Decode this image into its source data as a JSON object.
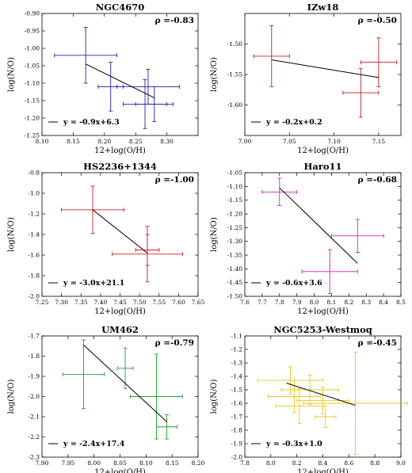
{
  "chart_data": [
    {
      "type": "scatter",
      "title": "NGC4670",
      "rho": "ρ =-0.83",
      "xlabel": "12+log(O/H)",
      "ylabel": "log(N/O)",
      "xlim": [
        8.1,
        8.35
      ],
      "ylim": [
        -1.25,
        -0.9
      ],
      "xticks": [
        8.1,
        8.15,
        8.2,
        8.25,
        8.3
      ],
      "xtick_labels": [
        "8.10",
        "8.15",
        "8.20",
        "8.25",
        "8.30"
      ],
      "yticks": [
        -1.25,
        -1.2,
        -1.15,
        -1.1,
        -1.05,
        -1.0,
        -0.95,
        -0.9
      ],
      "ytick_labels": [
        "-1.25",
        "-1.20",
        "-1.15",
        "-1.10",
        "-1.05",
        "-1.00",
        "-0.95",
        "-0.90"
      ],
      "color": "#2020b0",
      "points": [
        {
          "x": 8.17,
          "y": -1.02,
          "xerr": 0.05,
          "yerr": 0.08
        },
        {
          "x": 8.21,
          "y": -1.11,
          "xerr": 0.02,
          "yerr": 0.07
        },
        {
          "x": 8.27,
          "y": -1.11,
          "xerr": 0.05,
          "yerr": 0.05
        },
        {
          "x": 8.265,
          "y": -1.16,
          "xerr": 0.035,
          "yerr": 0.07
        },
        {
          "x": 8.28,
          "y": -1.16,
          "xerr": 0.03,
          "yerr": 0.05
        }
      ],
      "fit_line": {
        "x": [
          8.17,
          8.28
        ],
        "y": [
          -1.045,
          -1.142
        ]
      },
      "legend": "y = -0.9x+6.3"
    },
    {
      "type": "scatter",
      "title": "IZw18",
      "rho": "ρ =-0.50",
      "xlabel": "12+log(O/H)",
      "ylabel": "log(N/O)",
      "xlim": [
        7.0,
        7.175
      ],
      "ylim": [
        -1.65,
        -1.45
      ],
      "xticks": [
        7.0,
        7.05,
        7.1,
        7.15
      ],
      "xtick_labels": [
        "7.00",
        "7.05",
        "7.10",
        "7.15"
      ],
      "yticks": [
        -1.6,
        -1.55,
        -1.5
      ],
      "ytick_labels": [
        "-1.60",
        "-1.55",
        "-1.50"
      ],
      "color": "#c02020",
      "points": [
        {
          "x": 7.03,
          "y": -1.52,
          "xerr": 0.02,
          "yerr": 0.05
        },
        {
          "x": 7.13,
          "y": -1.58,
          "xerr": 0.02,
          "yerr": 0.04
        },
        {
          "x": 7.15,
          "y": -1.53,
          "xerr": 0.02,
          "yerr": 0.04
        }
      ],
      "fit_line": {
        "x": [
          7.03,
          7.15
        ],
        "y": [
          -1.526,
          -1.555
        ]
      },
      "legend": "y = -0.2x+0.2"
    },
    {
      "type": "scatter",
      "title": "HS2236+1344",
      "rho": "ρ =-1.00",
      "xlabel": "12+log(O/H)",
      "ylabel": "log(N/O)",
      "xlim": [
        7.25,
        7.65
      ],
      "ylim": [
        -2.0,
        -0.8
      ],
      "xticks": [
        7.25,
        7.3,
        7.35,
        7.4,
        7.45,
        7.5,
        7.55,
        7.6,
        7.65
      ],
      "xtick_labels": [
        "7.25",
        "7.30",
        "7.35",
        "7.40",
        "7.45",
        "7.50",
        "7.55",
        "7.60",
        "7.65"
      ],
      "yticks": [
        -2.0,
        -1.8,
        -1.6,
        -1.4,
        -1.2,
        -1.0,
        -0.8
      ],
      "ytick_labels": [
        "-2.0",
        "-1.8",
        "-1.6",
        "-1.4",
        "-1.2",
        "-1.0",
        "-0.8"
      ],
      "color": "#d02020",
      "points": [
        {
          "x": 7.38,
          "y": -1.16,
          "xerr": 0.08,
          "yerr": 0.23
        },
        {
          "x": 7.52,
          "y": -1.55,
          "xerr": 0.03,
          "yerr": 0.15
        },
        {
          "x": 7.52,
          "y": -1.59,
          "xerr": 0.09,
          "yerr": 0.27
        }
      ],
      "fit_line": {
        "x": [
          7.38,
          7.52
        ],
        "y": [
          -1.16,
          -1.58
        ]
      },
      "legend": "y = -3.0x+21.1"
    },
    {
      "type": "scatter",
      "title": "Haro11",
      "rho": "ρ =-0.68",
      "xlabel": "12+log(O/H)",
      "ylabel": "log(N/O)",
      "xlim": [
        7.6,
        8.5
      ],
      "ylim": [
        -1.5,
        -1.05
      ],
      "xticks": [
        7.6,
        7.7,
        7.8,
        7.9,
        8.0,
        8.1,
        8.2,
        8.3,
        8.4,
        8.5
      ],
      "xtick_labels": [
        "7.6",
        "7.7",
        "7.8",
        "7.9",
        "8.0",
        "8.1",
        "8.2",
        "8.3",
        "8.4",
        "8.5"
      ],
      "yticks": [
        -1.5,
        -1.45,
        -1.4,
        -1.35,
        -1.3,
        -1.25,
        -1.2,
        -1.15,
        -1.1,
        -1.05
      ],
      "ytick_labels": [
        "-1.50",
        "-1.45",
        "-1.40",
        "-1.35",
        "-1.30",
        "-1.25",
        "-1.20",
        "-1.15",
        "-1.10",
        "-1.05"
      ],
      "color": "#d020c0",
      "points": [
        {
          "x": 7.8,
          "y": -1.12,
          "xerr": 0.1,
          "yerr": 0.05
        },
        {
          "x": 8.25,
          "y": -1.28,
          "xerr": 0.15,
          "yerr": 0.06
        },
        {
          "x": 8.09,
          "y": -1.41,
          "xerr": 0.16,
          "yerr": 0.08
        }
      ],
      "fit_line": {
        "x": [
          7.8,
          8.25
        ],
        "y": [
          -1.105,
          -1.38
        ]
      },
      "legend": "y = -0.6x+3.6"
    },
    {
      "type": "scatter",
      "title": "UM462",
      "rho": "ρ =-0.79",
      "xlabel": "12+log(O/H)",
      "ylabel": "log(N/O)",
      "xlim": [
        7.9,
        8.2
      ],
      "ylim": [
        -2.3,
        -1.7
      ],
      "xticks": [
        7.9,
        7.95,
        8.0,
        8.05,
        8.1,
        8.15,
        8.2
      ],
      "xtick_labels": [
        "7.90",
        "7.95",
        "8.00",
        "8.05",
        "8.10",
        "8.15",
        "8.20"
      ],
      "yticks": [
        -2.3,
        -2.2,
        -2.1,
        -2.0,
        -1.9,
        -1.8,
        -1.7
      ],
      "ytick_labels": [
        "-2.3",
        "-2.2",
        "-2.1",
        "-2.0",
        "-1.9",
        "-1.8",
        "-1.7"
      ],
      "color": "#20a030",
      "points": [
        {
          "x": 7.98,
          "y": -1.89,
          "xerr": 0.04,
          "yerr": 0.17
        },
        {
          "x": 8.06,
          "y": -1.86,
          "xerr": 0.015,
          "yerr": 0.1
        },
        {
          "x": 8.12,
          "y": -2.0,
          "xerr": 0.05,
          "yerr": 0.21
        },
        {
          "x": 8.14,
          "y": -2.15,
          "xerr": 0.02,
          "yerr": 0.06
        }
      ],
      "fit_line": {
        "x": [
          7.98,
          8.14
        ],
        "y": [
          -1.745,
          -2.125
        ]
      },
      "legend": "y = -2.4x+17.4"
    },
    {
      "type": "scatter",
      "title": "NGC5253-Westmoq",
      "rho": "ρ =-0.45",
      "xlabel": "12+log(O/H)",
      "ylabel": "log(N/O)",
      "xlim": [
        7.8,
        9.0
      ],
      "ylim": [
        -2.0,
        -1.1
      ],
      "xticks": [
        7.8,
        8.0,
        8.2,
        8.4,
        8.6,
        8.8,
        9.0
      ],
      "xtick_labels": [
        "7.8",
        "8.0",
        "8.2",
        "8.4",
        "8.6",
        "8.8",
        "9.0"
      ],
      "yticks": [
        -2.0,
        -1.9,
        -1.8,
        -1.7,
        -1.6,
        -1.5,
        -1.4,
        -1.3,
        -1.2,
        -1.1
      ],
      "ytick_labels": [
        "-2.0",
        "-1.9",
        "-1.8",
        "-1.7",
        "-1.6",
        "-1.5",
        "-1.4",
        "-1.3",
        "-1.2",
        "-1.1"
      ],
      "color": "#e8c820",
      "points": [
        {
          "x": 8.15,
          "y": -1.43,
          "xerr": 0.25,
          "yerr": 0.1
        },
        {
          "x": 8.18,
          "y": -1.55,
          "xerr": 0.2,
          "yerr": 0.12
        },
        {
          "x": 8.22,
          "y": -1.62,
          "xerr": 0.18,
          "yerr": 0.13
        },
        {
          "x": 8.3,
          "y": -1.5,
          "xerr": 0.22,
          "yerr": 0.11
        },
        {
          "x": 8.4,
          "y": -1.58,
          "xerr": 0.2,
          "yerr": 0.1
        },
        {
          "x": 8.42,
          "y": -1.7,
          "xerr": 0.08,
          "yerr": 0.08
        },
        {
          "x": 8.65,
          "y": -1.6,
          "xerr": 0.4,
          "yerr": 0.38
        }
      ],
      "fit_line": {
        "x": [
          8.12,
          8.65
        ],
        "y": [
          -1.45,
          -1.615
        ]
      },
      "legend": "y = -0.3x+1.0"
    }
  ]
}
